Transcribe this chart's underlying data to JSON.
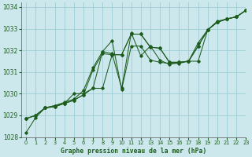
{
  "title": "Graphe pression niveau de la mer (hPa)",
  "background_color": "#cce8ed",
  "grid_color": "#9ecdd6",
  "line_color": "#1e5c1e",
  "xlim": [
    -0.5,
    23
  ],
  "ylim": [
    1028,
    1034.2
  ],
  "yticks": [
    1028,
    1029,
    1030,
    1031,
    1032,
    1033,
    1034
  ],
  "xticks": [
    0,
    1,
    2,
    3,
    4,
    5,
    6,
    7,
    8,
    9,
    10,
    11,
    12,
    13,
    14,
    15,
    16,
    17,
    18,
    19,
    20,
    21,
    22,
    23
  ],
  "series": [
    [
      1028.2,
      1028.9,
      1029.35,
      1029.4,
      1029.55,
      1029.7,
      1029.95,
      1031.1,
      1031.85,
      1031.8,
      1031.8,
      1032.75,
      1032.75,
      1032.15,
      1032.1,
      1031.45,
      1031.45,
      1031.5,
      1032.2,
      1032.95,
      1033.3,
      1033.45,
      1033.55,
      1033.85
    ],
    [
      1028.85,
      1029.0,
      1029.35,
      1029.4,
      1029.55,
      1029.7,
      1029.95,
      1030.25,
      1030.25,
      1031.8,
      1031.8,
      1032.75,
      1032.75,
      1032.15,
      1032.1,
      1031.45,
      1031.45,
      1031.5,
      1032.2,
      1032.95,
      1033.3,
      1033.45,
      1033.55,
      1033.85
    ],
    [
      1028.85,
      1029.0,
      1029.35,
      1029.45,
      1029.55,
      1030.0,
      1030.0,
      1030.25,
      1031.95,
      1032.45,
      1030.2,
      1032.2,
      1032.2,
      1031.55,
      1031.45,
      1031.4,
      1031.4,
      1031.5,
      1031.5,
      1032.95,
      1033.3,
      1033.45,
      1033.55,
      1033.85
    ],
    [
      1028.85,
      1029.0,
      1029.35,
      1029.45,
      1029.6,
      1029.75,
      1030.15,
      1031.2,
      1031.95,
      1031.85,
      1030.25,
      1032.8,
      1031.75,
      1032.2,
      1031.55,
      1031.35,
      1031.45,
      1031.5,
      1032.35,
      1032.95,
      1033.35,
      1033.45,
      1033.55,
      1033.85
    ]
  ]
}
